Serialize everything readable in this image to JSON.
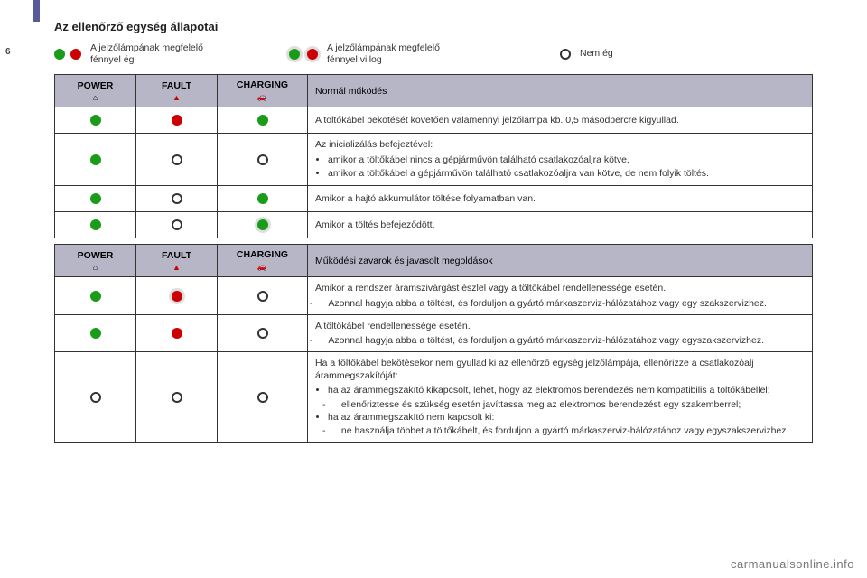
{
  "colors": {
    "green": "#1a9c1a",
    "red": "#cc0000",
    "haloGrey": "rgba(180,180,180,0.6)",
    "headerBg": "#b6b6c6",
    "border": "#333333",
    "text": "#333333",
    "sideTab": "#5a5a9a"
  },
  "pageNumber": "6",
  "title": "Az ellenőrző egység állapotai",
  "legend": {
    "steadyText": "A jelzőlámpának megfelelő\nfénnyel ég",
    "blinkText": "A jelzőlámpának megfelelő\nfénnyel villog",
    "offText": "Nem ég"
  },
  "table1": {
    "headers": {
      "power": "POWER",
      "fault": "FAULT",
      "charging": "CHARGING",
      "desc": "Normál működés"
    },
    "rows": [
      {
        "power": {
          "type": "dot",
          "color": "green"
        },
        "fault": {
          "type": "dot",
          "color": "red"
        },
        "charging": {
          "type": "dot",
          "color": "green"
        },
        "desc": "A töltőkábel bekötését követően valamennyi jelzőlámpa kb. 0,5 másodpercre kigyullad."
      },
      {
        "power": {
          "type": "dot",
          "color": "green"
        },
        "fault": {
          "type": "ring"
        },
        "charging": {
          "type": "ring"
        },
        "desc": "Az inicializálás befejeztével:",
        "bullets": [
          "amikor a töltőkábel nincs a gépjárművön található csatlakozóaljra kötve,",
          "amikor a töltőkábel a gépjárművön található csatlakozóaljra van kötve, de nem folyik töltés."
        ]
      },
      {
        "power": {
          "type": "dot",
          "color": "green"
        },
        "fault": {
          "type": "ring"
        },
        "charging": {
          "type": "dot",
          "color": "green"
        },
        "desc": "Amikor a hajtó akkumulátor töltése folyamatban van."
      },
      {
        "power": {
          "type": "dot",
          "color": "green"
        },
        "fault": {
          "type": "ring"
        },
        "charging": {
          "type": "dot-halo",
          "color": "green"
        },
        "desc": "Amikor a töltés befejeződött."
      }
    ]
  },
  "table2": {
    "headers": {
      "power": "POWER",
      "fault": "FAULT",
      "charging": "CHARGING",
      "desc": "Működési zavarok és javasolt megoldások"
    },
    "rows": [
      {
        "power": {
          "type": "dot",
          "color": "green"
        },
        "fault": {
          "type": "dot-halo",
          "color": "red"
        },
        "charging": {
          "type": "ring"
        },
        "desc": "Amikor a rendszer áramszivárgást észlel vagy a töltőkábel rendellenessége esetén.",
        "dashes": [
          "Azonnal hagyja abba a töltést, és forduljon a gyártó márkaszerviz-hálózatához vagy egy szakszervizhez."
        ]
      },
      {
        "power": {
          "type": "dot",
          "color": "green"
        },
        "fault": {
          "type": "dot",
          "color": "red"
        },
        "charging": {
          "type": "ring"
        },
        "desc": "A töltőkábel rendellenessége esetén.",
        "dashes": [
          "Azonnal hagyja abba a töltést, és forduljon a gyártó márkaszerviz-hálózatához vagy egyszakszervizhez."
        ]
      },
      {
        "power": {
          "type": "ring"
        },
        "fault": {
          "type": "ring"
        },
        "charging": {
          "type": "ring"
        },
        "desc": "Ha a töltőkábel bekötésekor nem gyullad ki az ellenőrző egység jelzőlámpája, ellenőrizze a csatlakozóalj árammegszakítóját:",
        "bullets": [
          "ha az árammegszakító kikapcsolt, lehet, hogy az elektromos berendezés nem kompatibilis a töltőkábellel;",
          "",
          "ha az árammegszakító nem kapcsolt ki:"
        ],
        "bulletDashes": {
          "1": "ellenőriztesse és szükség esetén javíttassa meg az elektromos berendezést egy szakemberrel;",
          "3": "ne használja többet a töltőkábelt, és forduljon a gyártó márkaszerviz-hálózatához vagy egyszakszervizhez."
        }
      }
    ]
  },
  "headerIcons": {
    "power": "⌂",
    "fault": "▲",
    "charging": "🚗"
  },
  "footerUrl": "carmanualsonline.info"
}
